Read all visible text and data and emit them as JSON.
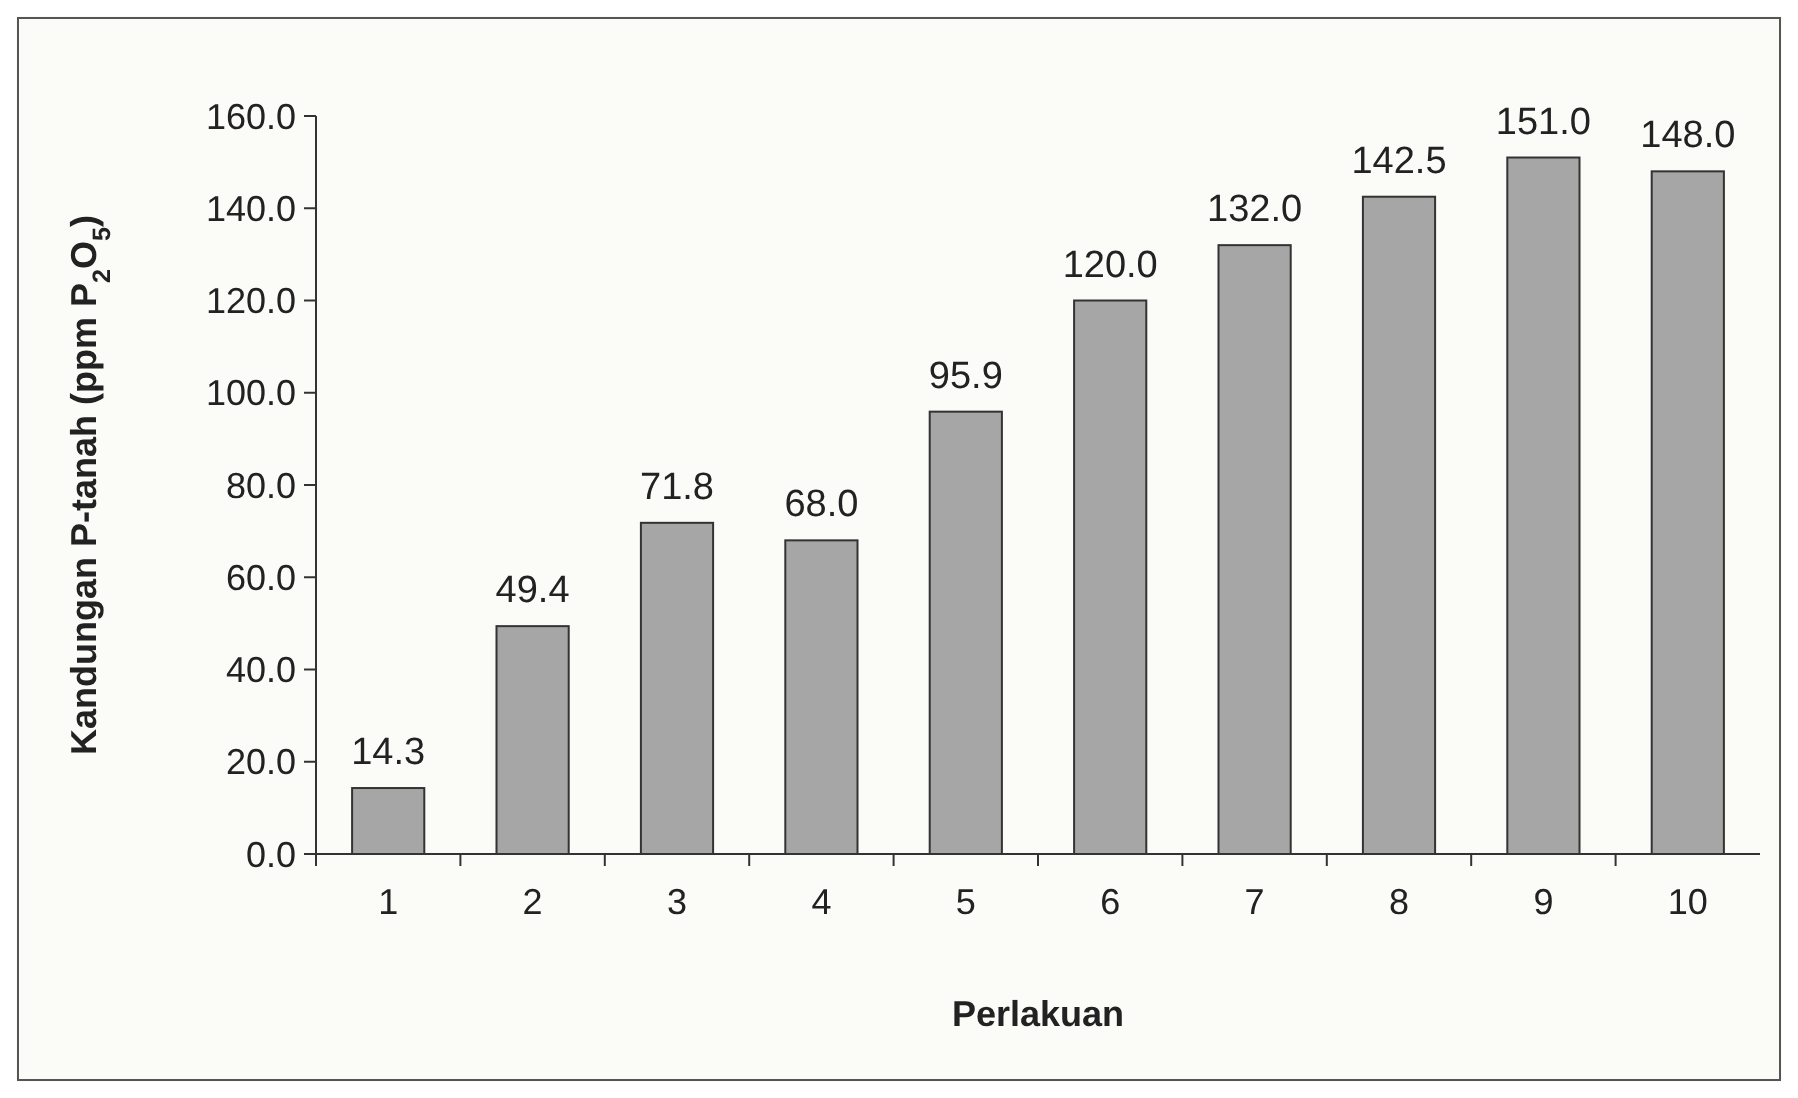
{
  "chart_data": {
    "type": "bar",
    "xlabel": "Perlakuan",
    "ylabel": "Kandungan P-tanah (ppm P$_{2}$O$_{5}$)",
    "categories": [
      "1",
      "2",
      "3",
      "4",
      "5",
      "6",
      "7",
      "8",
      "9",
      "10"
    ],
    "values": [
      14.3,
      49.4,
      71.8,
      68.0,
      95.9,
      120.0,
      132.0,
      142.5,
      151.0,
      148.0
    ],
    "value_labels": [
      "14.3",
      "49.4",
      "71.8",
      "68.0",
      "95.9",
      "120.0",
      "132.0",
      "142.5",
      "151.0",
      "148.0"
    ],
    "color": "#a6a6a6",
    "ylim": [
      0,
      160
    ],
    "yticks": [
      {
        "value": 0,
        "label": "0.0"
      },
      {
        "value": 20,
        "label": "20.0"
      },
      {
        "value": 40,
        "label": "40.0"
      },
      {
        "value": 60,
        "label": "60.0"
      },
      {
        "value": 80,
        "label": "80.0"
      },
      {
        "value": 100,
        "label": "100.0"
      },
      {
        "value": 120,
        "label": "120.0"
      },
      {
        "value": 140,
        "label": "140.0"
      },
      {
        "value": 160,
        "label": "160.0"
      }
    ],
    "grid": false
  }
}
